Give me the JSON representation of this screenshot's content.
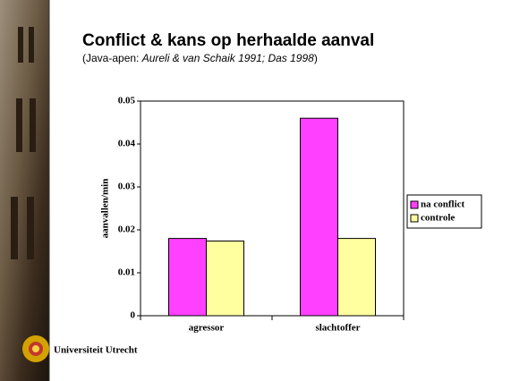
{
  "header": {
    "title": "Conflict & kans op herhaalde aanval",
    "subtitle": [
      "(Java-apen: ",
      "Aureli & van Schaik 1991; Das 1998",
      ")"
    ]
  },
  "footer": {
    "institution": "Universiteit Utrecht"
  },
  "chart_data": {
    "type": "bar",
    "y_label": "aanvallen/min",
    "categories": [
      "agressor",
      "slachtoffer"
    ],
    "series": [
      {
        "name": "na conflict",
        "color": "#ff40ff",
        "values": [
          0.018,
          0.046
        ]
      },
      {
        "name": "controle",
        "color": "#ffffa0",
        "values": [
          0.0174,
          0.018
        ]
      }
    ],
    "ylim": [
      0,
      0.05
    ],
    "yticks": [
      0,
      0.01,
      0.02,
      0.03,
      0.04,
      0.05
    ],
    "legend": "right"
  }
}
